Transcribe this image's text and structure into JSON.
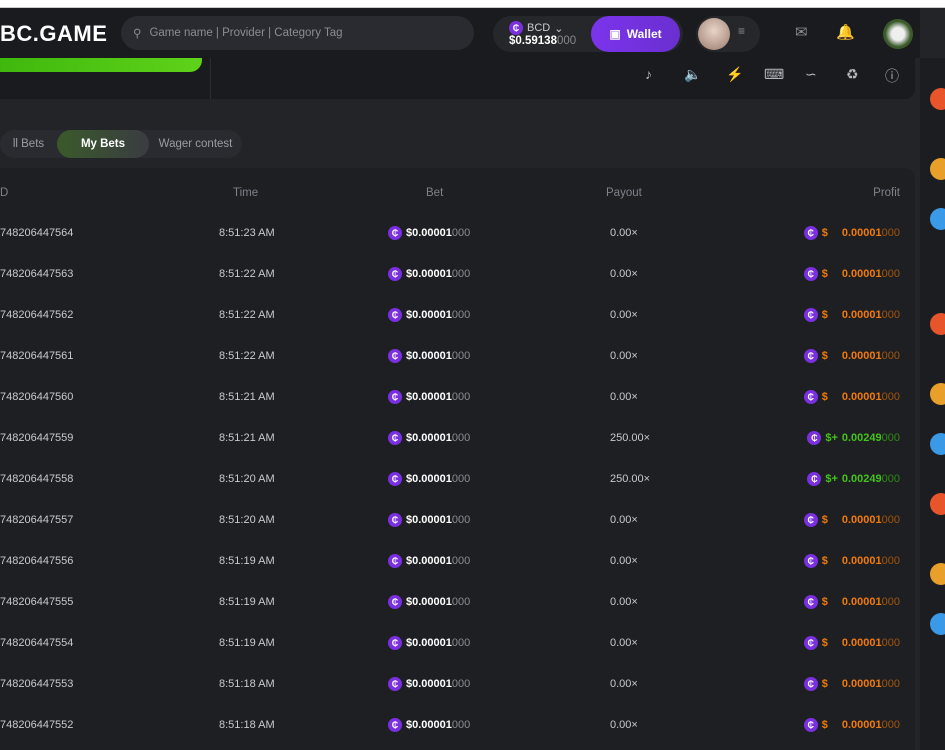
{
  "header": {
    "logo": "BC.GAME",
    "search_placeholder": "Game name | Provider | Category Tag",
    "currency": "BCD",
    "balance_main": "$0.59138",
    "balance_dim": "000",
    "wallet_label": "Wallet"
  },
  "tabs": [
    {
      "label": "ll Bets",
      "active": false
    },
    {
      "label": "My Bets",
      "active": true
    },
    {
      "label": "Wager contest",
      "active": false
    }
  ],
  "table": {
    "headers": {
      "id": "D",
      "time": "Time",
      "bet": "Bet",
      "payout": "Payout",
      "profit": "Profit"
    },
    "rows": [
      {
        "id": "748206447564",
        "time": "8:51:23 AM",
        "bet_main": "$0.00001",
        "bet_dim": "000",
        "payout": "0.00×",
        "profit_sign": "$",
        "profit_main": "0.00001",
        "profit_dim": "000",
        "result": "loss"
      },
      {
        "id": "748206447563",
        "time": "8:51:22 AM",
        "bet_main": "$0.00001",
        "bet_dim": "000",
        "payout": "0.00×",
        "profit_sign": "$",
        "profit_main": "0.00001",
        "profit_dim": "000",
        "result": "loss"
      },
      {
        "id": "748206447562",
        "time": "8:51:22 AM",
        "bet_main": "$0.00001",
        "bet_dim": "000",
        "payout": "0.00×",
        "profit_sign": "$",
        "profit_main": "0.00001",
        "profit_dim": "000",
        "result": "loss"
      },
      {
        "id": "748206447561",
        "time": "8:51:22 AM",
        "bet_main": "$0.00001",
        "bet_dim": "000",
        "payout": "0.00×",
        "profit_sign": "$",
        "profit_main": "0.00001",
        "profit_dim": "000",
        "result": "loss"
      },
      {
        "id": "748206447560",
        "time": "8:51:21 AM",
        "bet_main": "$0.00001",
        "bet_dim": "000",
        "payout": "0.00×",
        "profit_sign": "$",
        "profit_main": "0.00001",
        "profit_dim": "000",
        "result": "loss"
      },
      {
        "id": "748206447559",
        "time": "8:51:21 AM",
        "bet_main": "$0.00001",
        "bet_dim": "000",
        "payout": "250.00×",
        "profit_sign": "$+",
        "profit_main": "0.00249",
        "profit_dim": "000",
        "result": "win"
      },
      {
        "id": "748206447558",
        "time": "8:51:20 AM",
        "bet_main": "$0.00001",
        "bet_dim": "000",
        "payout": "250.00×",
        "profit_sign": "$+",
        "profit_main": "0.00249",
        "profit_dim": "000",
        "result": "win"
      },
      {
        "id": "748206447557",
        "time": "8:51:20 AM",
        "bet_main": "$0.00001",
        "bet_dim": "000",
        "payout": "0.00×",
        "profit_sign": "$",
        "profit_main": "0.00001",
        "profit_dim": "000",
        "result": "loss"
      },
      {
        "id": "748206447556",
        "time": "8:51:19 AM",
        "bet_main": "$0.00001",
        "bet_dim": "000",
        "payout": "0.00×",
        "profit_sign": "$",
        "profit_main": "0.00001",
        "profit_dim": "000",
        "result": "loss"
      },
      {
        "id": "748206447555",
        "time": "8:51:19 AM",
        "bet_main": "$0.00001",
        "bet_dim": "000",
        "payout": "0.00×",
        "profit_sign": "$",
        "profit_main": "0.00001",
        "profit_dim": "000",
        "result": "loss"
      },
      {
        "id": "748206447554",
        "time": "8:51:19 AM",
        "bet_main": "$0.00001",
        "bet_dim": "000",
        "payout": "0.00×",
        "profit_sign": "$",
        "profit_main": "0.00001",
        "profit_dim": "000",
        "result": "loss"
      },
      {
        "id": "748206447553",
        "time": "8:51:18 AM",
        "bet_main": "$0.00001",
        "bet_dim": "000",
        "payout": "0.00×",
        "profit_sign": "$",
        "profit_main": "0.00001",
        "profit_dim": "000",
        "result": "loss"
      },
      {
        "id": "748206447552",
        "time": "8:51:18 AM",
        "bet_main": "$0.00001",
        "bet_dim": "000",
        "payout": "0.00×",
        "profit_sign": "$",
        "profit_main": "0.00001",
        "profit_dim": "000",
        "result": "loss"
      }
    ]
  },
  "colors": {
    "accent": "#7b34ec",
    "win": "#44c41a",
    "loss": "#f07a0c",
    "brand_green": "#5fd31a"
  },
  "coin_glyph": "₵",
  "icons": [
    "search-icon",
    "chevron-down-icon",
    "wallet-icon",
    "menu-icon",
    "mail-icon",
    "bell-icon",
    "chat-icon",
    "music-off-icon",
    "sound-icon",
    "lightning-icon",
    "keyboard-icon",
    "chart-icon",
    "trophy-icon",
    "help-icon"
  ]
}
